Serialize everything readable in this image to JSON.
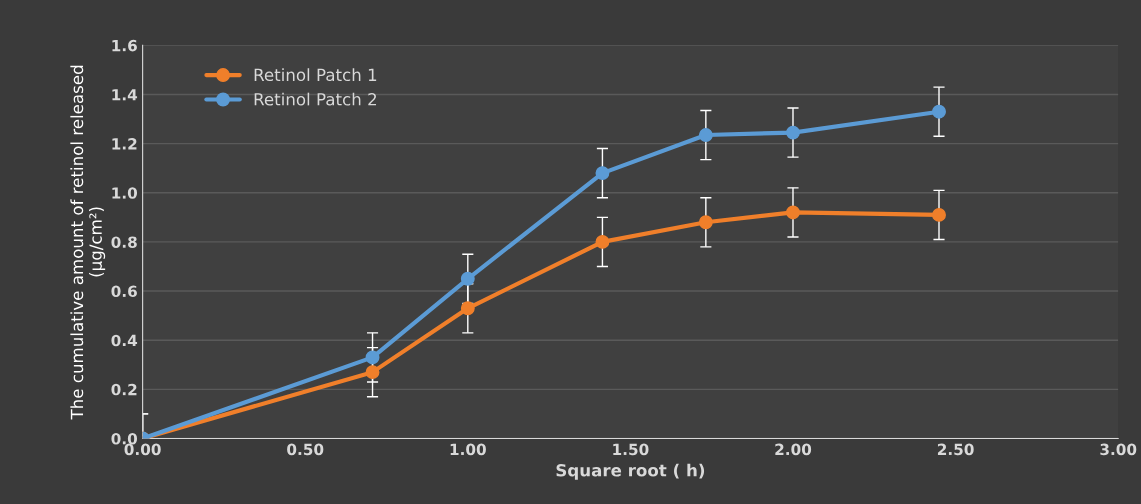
{
  "chart_data": {
    "type": "line",
    "xlabel": "Square root ( h)",
    "ylabel": "The cumulative amount of retinol released\n(µg/cm²)",
    "series": [
      {
        "name": "Retinol Patch 1",
        "color": "#f07f2a",
        "x": [
          0,
          0.707,
          1.0,
          1.414,
          1.732,
          2.0,
          2.449
        ],
        "values": [
          0,
          0.27,
          0.53,
          0.8,
          0.88,
          0.92,
          0.91
        ],
        "errors": [
          0.1,
          0.1,
          0.1,
          0.1,
          0.1,
          0.1,
          0.1
        ]
      },
      {
        "name": "Retinol Patch 2",
        "color": "#5b9bd5",
        "x": [
          0,
          0.707,
          1.0,
          1.414,
          1.732,
          2.0,
          2.449
        ],
        "values": [
          0,
          0.33,
          0.65,
          1.08,
          1.235,
          1.245,
          1.33
        ],
        "errors": [
          0.1,
          0.1,
          0.1,
          0.1,
          0.1,
          0.1,
          0.1
        ]
      }
    ],
    "xlim": [
      0,
      3
    ],
    "xticks": [
      {
        "value": 0,
        "label": "0.00"
      },
      {
        "value": 0.5,
        "label": "0.50"
      },
      {
        "value": 1,
        "label": "1.00"
      },
      {
        "value": 1.5,
        "label": "1.50"
      },
      {
        "value": 2,
        "label": "2.00"
      },
      {
        "value": 2.5,
        "label": "2.50"
      },
      {
        "value": 3,
        "label": "3.00"
      }
    ],
    "ylim": [
      0,
      1.6
    ],
    "yticks": [
      {
        "value": 0,
        "label": "0.0"
      },
      {
        "value": 0.2,
        "label": "0.2"
      },
      {
        "value": 0.4,
        "label": "0.4"
      },
      {
        "value": 0.6,
        "label": "0.6"
      },
      {
        "value": 0.8,
        "label": "0.8"
      },
      {
        "value": 1.0,
        "label": "1.0"
      },
      {
        "value": 1.2,
        "label": "1.2"
      },
      {
        "value": 1.4,
        "label": "1.4"
      },
      {
        "value": 1.6,
        "label": "1.6"
      }
    ],
    "grid": "y",
    "legend": "top left",
    "marker": "circle",
    "line_style": "solid"
  }
}
